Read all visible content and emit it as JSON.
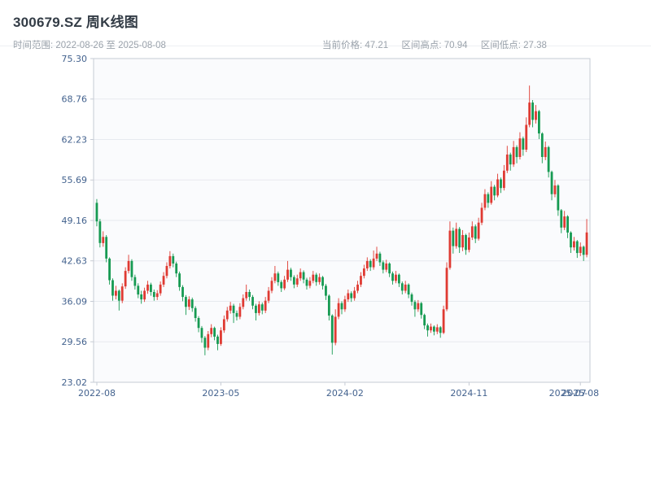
{
  "header": {
    "title": "300679.SZ 周K线图",
    "time_range": "时间范围: 2022-08-26 至 2025-08-08",
    "stats": {
      "current_price": "当前价格: 47.21",
      "range_high": "区间高点: 70.94",
      "range_low": "区间低点: 27.38"
    }
  },
  "chart_data": {
    "type": "candlestick",
    "title": "300679.SZ 周K线图",
    "series_name": "300679.SZ",
    "frequency": "weekly",
    "start_date": "2022-08-26",
    "end_date": "2025-08-08",
    "xlabel": "",
    "ylabel": "",
    "ylim": [
      23.02,
      75.3
    ],
    "y_ticks": [
      23.02,
      29.56,
      36.09,
      42.63,
      49.16,
      55.69,
      62.23,
      68.76,
      75.3
    ],
    "x_ticks": [
      {
        "label": "2022-08",
        "index": 0,
        "tick": true
      },
      {
        "label": "2023-05",
        "index": 39,
        "tick": true
      },
      {
        "label": "2024-02",
        "index": 78,
        "tick": true
      },
      {
        "label": "2024-11",
        "index": 117,
        "tick": true
      },
      {
        "label": "2025-07",
        "index": 148,
        "tick": false
      },
      {
        "label": "2025-08",
        "index": 152,
        "tick": true
      }
    ],
    "grid": true,
    "legend": "none",
    "current_price": 47.21,
    "range_high": 70.94,
    "range_low": 27.38,
    "up_color": "#df3a32",
    "down_color": "#169a52",
    "grid_color": "#e7eaef",
    "axis_color": "#c6cbd4",
    "plot_bg": "#fafbfd",
    "ohlc_format": [
      "open",
      "high",
      "low",
      "close"
    ],
    "candles": [
      [
        52.0,
        52.6,
        48.2,
        49.0
      ],
      [
        49.0,
        49.4,
        44.8,
        45.5
      ],
      [
        45.5,
        47.4,
        44.9,
        46.5
      ],
      [
        46.5,
        46.8,
        42.4,
        43.0
      ],
      [
        43.0,
        43.2,
        38.8,
        39.5
      ],
      [
        39.5,
        39.8,
        36.2,
        37.0
      ],
      [
        37.0,
        38.6,
        36.4,
        37.8
      ],
      [
        37.8,
        38.0,
        34.6,
        36.2
      ],
      [
        36.2,
        39.0,
        35.8,
        38.5
      ],
      [
        38.5,
        41.6,
        38.1,
        41.0
      ],
      [
        41.0,
        43.6,
        40.6,
        42.6
      ],
      [
        42.6,
        42.9,
        39.4,
        40.0
      ],
      [
        40.0,
        40.4,
        38.0,
        38.6
      ],
      [
        38.6,
        39.0,
        36.6,
        37.2
      ],
      [
        37.2,
        37.8,
        35.7,
        36.4
      ],
      [
        36.4,
        38.3,
        36.0,
        37.8
      ],
      [
        37.8,
        39.4,
        37.3,
        38.8
      ],
      [
        38.8,
        39.1,
        37.0,
        37.6
      ],
      [
        37.6,
        38.0,
        36.2,
        36.8
      ],
      [
        36.8,
        37.9,
        36.3,
        37.4
      ],
      [
        37.4,
        39.3,
        37.0,
        38.8
      ],
      [
        38.8,
        40.8,
        38.4,
        40.2
      ],
      [
        40.2,
        42.4,
        39.8,
        41.8
      ],
      [
        41.8,
        44.2,
        41.4,
        43.4
      ],
      [
        43.4,
        43.8,
        41.6,
        42.2
      ],
      [
        42.2,
        42.5,
        40.0,
        40.6
      ],
      [
        40.6,
        40.9,
        37.8,
        38.4
      ],
      [
        38.4,
        38.7,
        36.1,
        36.8
      ],
      [
        36.8,
        37.1,
        33.9,
        35.2
      ],
      [
        35.2,
        36.9,
        34.7,
        36.4
      ],
      [
        36.4,
        36.7,
        34.4,
        35.0
      ],
      [
        35.0,
        35.3,
        32.8,
        33.4
      ],
      [
        33.4,
        33.7,
        31.1,
        31.8
      ],
      [
        31.8,
        32.1,
        29.4,
        30.2
      ],
      [
        30.2,
        30.5,
        27.38,
        28.6
      ],
      [
        28.6,
        31.3,
        28.2,
        30.8
      ],
      [
        30.8,
        32.4,
        30.3,
        31.8
      ],
      [
        31.8,
        32.0,
        29.8,
        30.4
      ],
      [
        30.4,
        30.7,
        28.2,
        29.2
      ],
      [
        29.2,
        31.9,
        28.9,
        31.4
      ],
      [
        31.4,
        33.8,
        31.0,
        33.2
      ],
      [
        33.2,
        35.2,
        32.8,
        34.6
      ],
      [
        34.6,
        36.0,
        34.1,
        35.4
      ],
      [
        35.4,
        35.7,
        32.6,
        34.2
      ],
      [
        34.2,
        34.6,
        33.0,
        33.6
      ],
      [
        33.6,
        35.8,
        33.2,
        35.2
      ],
      [
        35.2,
        37.2,
        34.8,
        36.6
      ],
      [
        36.6,
        38.8,
        36.2,
        37.6
      ],
      [
        37.6,
        38.0,
        36.2,
        36.8
      ],
      [
        36.8,
        37.1,
        34.8,
        35.4
      ],
      [
        35.4,
        35.7,
        33.0,
        34.2
      ],
      [
        34.2,
        36.1,
        33.8,
        35.6
      ],
      [
        35.6,
        35.9,
        34.0,
        34.6
      ],
      [
        34.6,
        36.8,
        34.2,
        36.2
      ],
      [
        36.2,
        38.4,
        35.8,
        37.8
      ],
      [
        37.8,
        40.0,
        37.4,
        39.4
      ],
      [
        39.4,
        41.8,
        39.0,
        40.6
      ],
      [
        40.6,
        40.9,
        38.6,
        39.2
      ],
      [
        39.2,
        39.5,
        37.6,
        38.2
      ],
      [
        38.2,
        40.2,
        37.9,
        39.6
      ],
      [
        39.6,
        42.6,
        39.2,
        41.2
      ],
      [
        41.2,
        41.5,
        39.4,
        40.0
      ],
      [
        40.0,
        40.3,
        38.2,
        38.8
      ],
      [
        38.8,
        40.4,
        38.4,
        39.8
      ],
      [
        39.8,
        41.4,
        39.4,
        40.8
      ],
      [
        40.8,
        41.1,
        39.0,
        39.6
      ],
      [
        39.6,
        39.9,
        38.0,
        38.6
      ],
      [
        38.6,
        40.0,
        38.2,
        39.4
      ],
      [
        39.4,
        41.0,
        39.0,
        40.4
      ],
      [
        40.4,
        40.7,
        38.6,
        39.2
      ],
      [
        39.2,
        40.6,
        38.8,
        40.0
      ],
      [
        40.0,
        40.2,
        38.0,
        38.6
      ],
      [
        38.6,
        38.9,
        36.3,
        37.0
      ],
      [
        37.0,
        37.2,
        33.0,
        33.8
      ],
      [
        33.8,
        34.0,
        27.5,
        29.4
      ],
      [
        29.4,
        34.8,
        29.0,
        33.6
      ],
      [
        33.6,
        36.6,
        33.2,
        35.8
      ],
      [
        35.8,
        36.1,
        34.0,
        34.8
      ],
      [
        34.8,
        37.0,
        34.4,
        36.4
      ],
      [
        36.4,
        38.0,
        36.0,
        37.4
      ],
      [
        37.4,
        37.7,
        36.0,
        36.6
      ],
      [
        36.6,
        38.4,
        36.2,
        37.8
      ],
      [
        37.8,
        39.4,
        37.4,
        38.8
      ],
      [
        38.8,
        40.8,
        38.4,
        40.2
      ],
      [
        40.2,
        42.0,
        39.8,
        41.4
      ],
      [
        41.4,
        43.2,
        41.0,
        42.6
      ],
      [
        42.6,
        42.9,
        41.0,
        41.6
      ],
      [
        41.6,
        44.3,
        41.2,
        43.0
      ],
      [
        43.0,
        44.9,
        42.6,
        43.8
      ],
      [
        43.8,
        44.1,
        41.8,
        42.4
      ],
      [
        42.4,
        42.7,
        40.6,
        41.2
      ],
      [
        41.2,
        42.8,
        40.8,
        42.2
      ],
      [
        42.2,
        42.4,
        40.0,
        40.6
      ],
      [
        40.6,
        40.9,
        38.8,
        39.4
      ],
      [
        39.4,
        41.0,
        39.0,
        40.4
      ],
      [
        40.4,
        40.6,
        38.4,
        39.0
      ],
      [
        39.0,
        39.3,
        37.2,
        37.8
      ],
      [
        37.8,
        39.4,
        37.4,
        38.8
      ],
      [
        38.8,
        39.0,
        36.6,
        37.2
      ],
      [
        37.2,
        37.5,
        35.4,
        36.0
      ],
      [
        36.0,
        36.3,
        33.6,
        34.8
      ],
      [
        34.8,
        36.3,
        34.4,
        35.8
      ],
      [
        35.8,
        36.0,
        33.3,
        33.9
      ],
      [
        33.9,
        34.1,
        31.6,
        32.2
      ],
      [
        32.2,
        32.5,
        30.4,
        31.4
      ],
      [
        31.4,
        32.5,
        31.0,
        32.0
      ],
      [
        32.0,
        32.2,
        30.6,
        31.2
      ],
      [
        31.2,
        32.4,
        30.8,
        31.9
      ],
      [
        31.9,
        32.1,
        30.2,
        31.0
      ],
      [
        31.0,
        35.4,
        30.8,
        34.8
      ],
      [
        34.8,
        42.4,
        34.5,
        41.5
      ],
      [
        41.5,
        49.0,
        41.2,
        47.5
      ],
      [
        47.5,
        48.0,
        43.8,
        45.0
      ],
      [
        45.0,
        48.8,
        44.6,
        47.8
      ],
      [
        47.8,
        48.1,
        43.9,
        44.8
      ],
      [
        44.8,
        47.6,
        44.2,
        46.8
      ],
      [
        46.8,
        47.0,
        43.6,
        44.4
      ],
      [
        44.4,
        47.2,
        44.0,
        46.4
      ],
      [
        46.4,
        49.0,
        46.0,
        48.2
      ],
      [
        48.2,
        48.5,
        45.5,
        46.2
      ],
      [
        46.2,
        49.6,
        45.9,
        48.8
      ],
      [
        48.8,
        52.0,
        48.4,
        51.2
      ],
      [
        51.2,
        54.2,
        50.8,
        53.4
      ],
      [
        53.4,
        53.7,
        51.2,
        52.0
      ],
      [
        52.0,
        55.5,
        51.7,
        54.6
      ],
      [
        54.6,
        54.9,
        52.4,
        53.2
      ],
      [
        53.2,
        56.7,
        52.9,
        55.8
      ],
      [
        55.8,
        56.1,
        53.6,
        54.4
      ],
      [
        54.4,
        58.1,
        54.0,
        57.2
      ],
      [
        57.2,
        61.2,
        56.8,
        59.8
      ],
      [
        59.8,
        60.1,
        57.2,
        58.2
      ],
      [
        58.2,
        62.0,
        57.8,
        61.0
      ],
      [
        61.0,
        61.3,
        58.4,
        59.4
      ],
      [
        59.4,
        63.4,
        59.0,
        62.4
      ],
      [
        62.4,
        62.7,
        59.6,
        60.6
      ],
      [
        60.6,
        65.8,
        60.2,
        64.6
      ],
      [
        64.6,
        70.94,
        64.2,
        68.2
      ],
      [
        68.2,
        68.6,
        64.2,
        65.4
      ],
      [
        65.4,
        67.8,
        64.8,
        66.8
      ],
      [
        66.8,
        67.0,
        62.3,
        63.2
      ],
      [
        63.2,
        63.4,
        58.4,
        59.4
      ],
      [
        59.4,
        61.9,
        58.9,
        61.0
      ],
      [
        61.0,
        61.2,
        56.1,
        57.0
      ],
      [
        57.0,
        57.2,
        52.4,
        53.4
      ],
      [
        53.4,
        55.7,
        52.9,
        54.8
      ],
      [
        54.8,
        55.0,
        49.9,
        50.8
      ],
      [
        50.8,
        51.0,
        47.1,
        48.0
      ],
      [
        48.0,
        50.7,
        47.6,
        49.8
      ],
      [
        49.8,
        50.0,
        46.3,
        47.2
      ],
      [
        47.2,
        47.4,
        43.9,
        44.8
      ],
      [
        44.8,
        46.5,
        44.3,
        45.8
      ],
      [
        45.8,
        46.0,
        43.1,
        43.9
      ],
      [
        43.9,
        45.6,
        43.4,
        44.9
      ],
      [
        44.9,
        45.1,
        42.6,
        43.6
      ],
      [
        43.6,
        49.4,
        43.2,
        47.21
      ]
    ]
  }
}
